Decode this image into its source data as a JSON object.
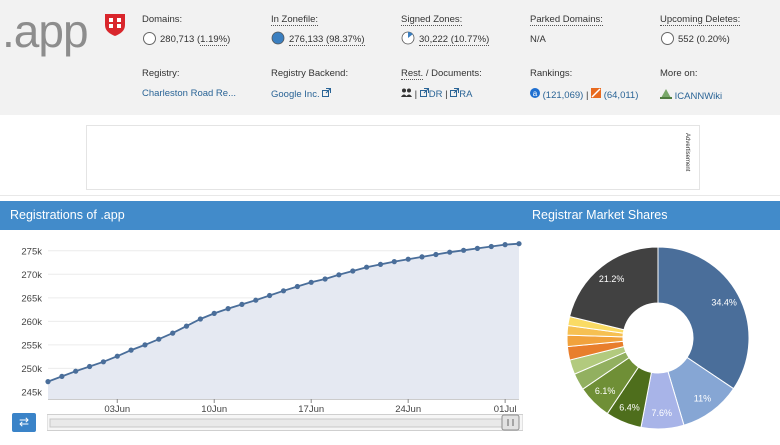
{
  "header": {
    "logo_text": ".app",
    "logo_icon": "red-shield-logo",
    "stats": [
      {
        "label": "Domains:",
        "value": "280,713 (",
        "value_link": "1.19%",
        "value_end": ")"
      },
      {
        "label": "In Zonefile:",
        "value": "276,133 (98.37%)"
      },
      {
        "label": "Signed Zones:",
        "value": "30,222 (10.77%)"
      },
      {
        "label": "Parked Domains:",
        "value": "N/A"
      },
      {
        "label": "Upcoming Deletes:",
        "value": "552 (0.20%)"
      }
    ],
    "info": [
      {
        "label": "Registry:",
        "value": "Charleston Road Re..."
      },
      {
        "label": "Registry Backend:",
        "value": "Google Inc."
      },
      {
        "label_u": "Rest.",
        "label_rest": " / Documents:",
        "links": [
          "DR",
          "RA"
        ]
      },
      {
        "label": "Rankings:",
        "rank1": "(121,069)",
        "rank2": "(64,011)"
      },
      {
        "label": "More on:",
        "value": "ICANNWiki"
      }
    ]
  },
  "ad": {
    "label": "Advertisement"
  },
  "registrations": {
    "title": "Registrations of .app",
    "chart_data": {
      "type": "area",
      "title": "Registrations of .app",
      "x_ticks": [
        "03Jun",
        "10Jun",
        "17Jun",
        "24Jun",
        "01Jul"
      ],
      "y_ticks": [
        "245k",
        "250k",
        "255k",
        "260k",
        "265k",
        "270k",
        "275k"
      ],
      "ylim": [
        243500,
        277500
      ],
      "x": [
        "29May",
        "30May",
        "31May",
        "01Jun",
        "02Jun",
        "03Jun",
        "04Jun",
        "05Jun",
        "06Jun",
        "07Jun",
        "08Jun",
        "09Jun",
        "10Jun",
        "11Jun",
        "12Jun",
        "13Jun",
        "14Jun",
        "15Jun",
        "16Jun",
        "17Jun",
        "18Jun",
        "19Jun",
        "20Jun",
        "21Jun",
        "22Jun",
        "23Jun",
        "24Jun",
        "25Jun",
        "26Jun",
        "27Jun",
        "28Jun",
        "29Jun",
        "30Jun",
        "01Jul",
        "02Jul"
      ],
      "values": [
        247200,
        248300,
        249400,
        250400,
        251400,
        252600,
        253900,
        255000,
        256200,
        257500,
        259000,
        260500,
        261700,
        262700,
        263600,
        264500,
        265500,
        266500,
        267400,
        268300,
        269000,
        269900,
        270700,
        271500,
        272100,
        272700,
        273200,
        273700,
        274200,
        274700,
        275100,
        275500,
        275900,
        276300,
        276500
      ]
    }
  },
  "market": {
    "title": "Registrar Market Shares",
    "chart_data": {
      "type": "pie",
      "slices": [
        {
          "label": "34.4%",
          "value": 34.4,
          "color": "#4a6e9a"
        },
        {
          "label": "11%",
          "value": 11.0,
          "color": "#86a6d4"
        },
        {
          "label": "7.6%",
          "value": 7.6,
          "color": "#a8b4e8"
        },
        {
          "label": "6.4%",
          "value": 6.4,
          "color": "#4e6e1c"
        },
        {
          "label": "6.1%",
          "value": 6.1,
          "color": "#6f8f36"
        },
        {
          "label": "",
          "value": 3.0,
          "color": "#92b060"
        },
        {
          "label": "",
          "value": 2.6,
          "color": "#b2ca7e"
        },
        {
          "label": "",
          "value": 2.4,
          "color": "#e87e2c"
        },
        {
          "label": "",
          "value": 2.0,
          "color": "#f1a23c"
        },
        {
          "label": "",
          "value": 1.7,
          "color": "#f6c052"
        },
        {
          "label": "",
          "value": 1.6,
          "color": "#fadb64"
        },
        {
          "label": "21.2%",
          "value": 21.2,
          "color": "#414141"
        }
      ]
    }
  },
  "colors": {
    "panel_header": "#428bca",
    "line": "#4a6e9a",
    "area": "#e5e9f2"
  }
}
